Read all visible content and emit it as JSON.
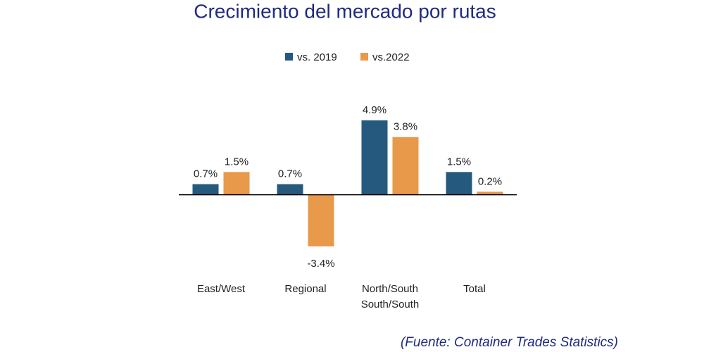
{
  "chart_data": {
    "type": "bar",
    "title": "Crecimiento del mercado por rutas",
    "categories": [
      "East/West",
      "Regional",
      "North/South\nSouth/South",
      "Total"
    ],
    "series": [
      {
        "name": "vs. 2019",
        "color": "#255a7e",
        "values": [
          0.7,
          0.7,
          4.9,
          1.5
        ],
        "value_labels": [
          "0.7%",
          "0.7%",
          "4.9%",
          "1.5%"
        ]
      },
      {
        "name": "vs.2022",
        "color": "#e8994a",
        "values": [
          1.5,
          -3.4,
          3.8,
          0.2
        ],
        "value_labels": [
          "1.5%",
          "-3.4%",
          "3.8%",
          "0.2%"
        ]
      }
    ],
    "source": "(Fuente: Container Trades Statistics)"
  }
}
